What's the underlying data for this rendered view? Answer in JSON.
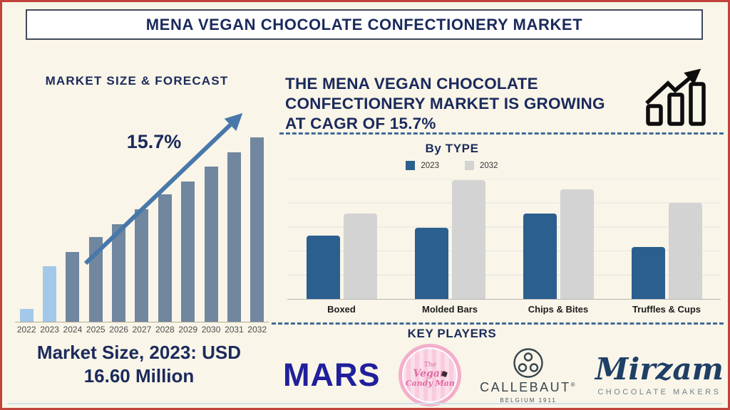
{
  "page": {
    "background": "#f9f5e8",
    "border_color": "#c2423c",
    "navy": "#1b2a5c",
    "title": "MENA VEGAN CHOCOLATE CONFECTIONERY MARKET"
  },
  "left_panel": {
    "heading": "MARKET SIZE & FORECAST",
    "growth_label": "15.7%",
    "caption_lines": [
      "Market Size, 2023: USD",
      "16.60 Million"
    ]
  },
  "right_panel": {
    "headline_lines": [
      "THE MENA VEGAN CHOCOLATE",
      "CONFECTIONERY MARKET IS GROWING",
      "AT CAGR OF 15.7%"
    ],
    "by_type_heading": "By TYPE",
    "key_players_heading": "KEY PLAYERS"
  },
  "key_players": {
    "mars": "MARS",
    "vegan_candy": {
      "lines": [
        "The",
        "Vegan",
        "Candy Man"
      ]
    },
    "callebaut": {
      "name": "CALLEBAUT",
      "registered": "®",
      "subtitle": "BELGIUM 1911"
    },
    "mirzam": {
      "name": "Mirzam",
      "subtitle": "CHOCOLATE MAKERS"
    }
  },
  "chart_data": [
    {
      "id": "market-size-forecast",
      "type": "bar",
      "title": "MARKET SIZE & FORECAST",
      "categories": [
        "2022",
        "2023",
        "2024",
        "2025",
        "2026",
        "2027",
        "2028",
        "2029",
        "2030",
        "2031",
        "2032"
      ],
      "values_relative": [
        7,
        30,
        38,
        46,
        53,
        61,
        69,
        76,
        84,
        92,
        100
      ],
      "value_scale": "relative bar height, 2032 = 100 (no y-axis shown)",
      "highlight_categories": [
        "2022",
        "2023"
      ],
      "bar_color": "#71869f",
      "highlight_color": "#a2c8ea",
      "annotation": "15.7%",
      "known_value_label": "Market Size, 2023: USD 16.60 Million",
      "xlabel": "",
      "ylabel": "",
      "grid": false
    },
    {
      "id": "by-type",
      "type": "bar",
      "title": "By TYPE",
      "categories": [
        "Boxed",
        "Molded Bars",
        "Chips & Bites",
        "Truffles & Cups"
      ],
      "series": [
        {
          "name": "2023",
          "color": "#2b5f8e",
          "values": [
            53,
            60,
            72,
            44
          ]
        },
        {
          "name": "2032",
          "color": "#d3d3d3",
          "values": [
            72,
            100,
            92,
            81
          ]
        }
      ],
      "value_scale": "relative bar height, 2032 Molded Bars = 100 (no y-axis shown)",
      "ylim": [
        0,
        100
      ],
      "grid": true,
      "legend_position": "top"
    }
  ]
}
